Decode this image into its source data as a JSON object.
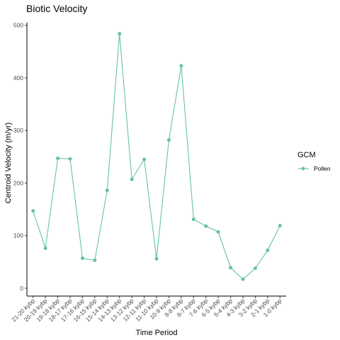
{
  "chart_data": {
    "type": "line",
    "title": "Biotic Velocity",
    "xlabel": "Time Period",
    "ylabel": "Centroid Velocity (m/yr)",
    "categories": [
      "21-20 kybp",
      "20-19 kybp",
      "19-18 kybp",
      "18-17 kybp",
      "17-16 kybp",
      "16-15 kybp",
      "15-14 kybp",
      "14-13 kybp",
      "13-12 kybp",
      "12-11 kybp",
      "11-10 kybp",
      "10-9 kybp",
      "9-8 kybp",
      "8-7 kybp",
      "7-6 kybp",
      "6-5 kybp",
      "5-4 kybp",
      "4-3 kybp",
      "3-2 kybp",
      "2-1 kybp",
      "1-0 kybp"
    ],
    "series": [
      {
        "name": "Pollen",
        "color": "#66c2a5",
        "values": [
          147,
          76,
          247,
          246,
          57,
          53,
          186,
          484,
          207,
          245,
          56,
          282,
          423,
          131,
          118,
          107,
          39,
          17,
          38,
          72,
          119
        ]
      }
    ],
    "ylim": [
      -15,
      505
    ],
    "yticks": [
      0,
      100,
      200,
      300,
      400,
      500
    ],
    "legend": {
      "title": "GCM",
      "position": "right"
    },
    "grid": false
  }
}
